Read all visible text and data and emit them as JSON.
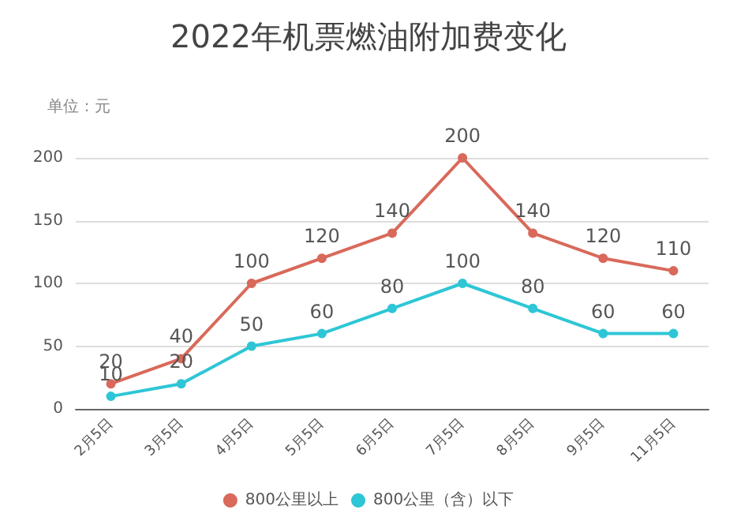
{
  "chart_data": {
    "type": "line",
    "title": "2022年机票燃油附加费变化",
    "ylabel": "单位：元",
    "categories": [
      "2月5日",
      "3月5日",
      "4月5日",
      "5月5日",
      "6月5日",
      "7月5日",
      "8月5日",
      "9月5日",
      "11月5日"
    ],
    "series": [
      {
        "name": "800公里以上",
        "color": "#d9695a",
        "values": [
          20,
          40,
          100,
          120,
          140,
          200,
          140,
          120,
          110
        ]
      },
      {
        "name": "800公里（含）以下",
        "color": "#2ec6d6",
        "values": [
          10,
          20,
          50,
          60,
          80,
          100,
          80,
          60,
          60
        ]
      }
    ],
    "ylim": [
      0,
      200
    ],
    "yticks": [
      0,
      50,
      100,
      150,
      200
    ],
    "grid": "y",
    "legend": "bottom",
    "marker": "circle",
    "data_labels": true
  }
}
